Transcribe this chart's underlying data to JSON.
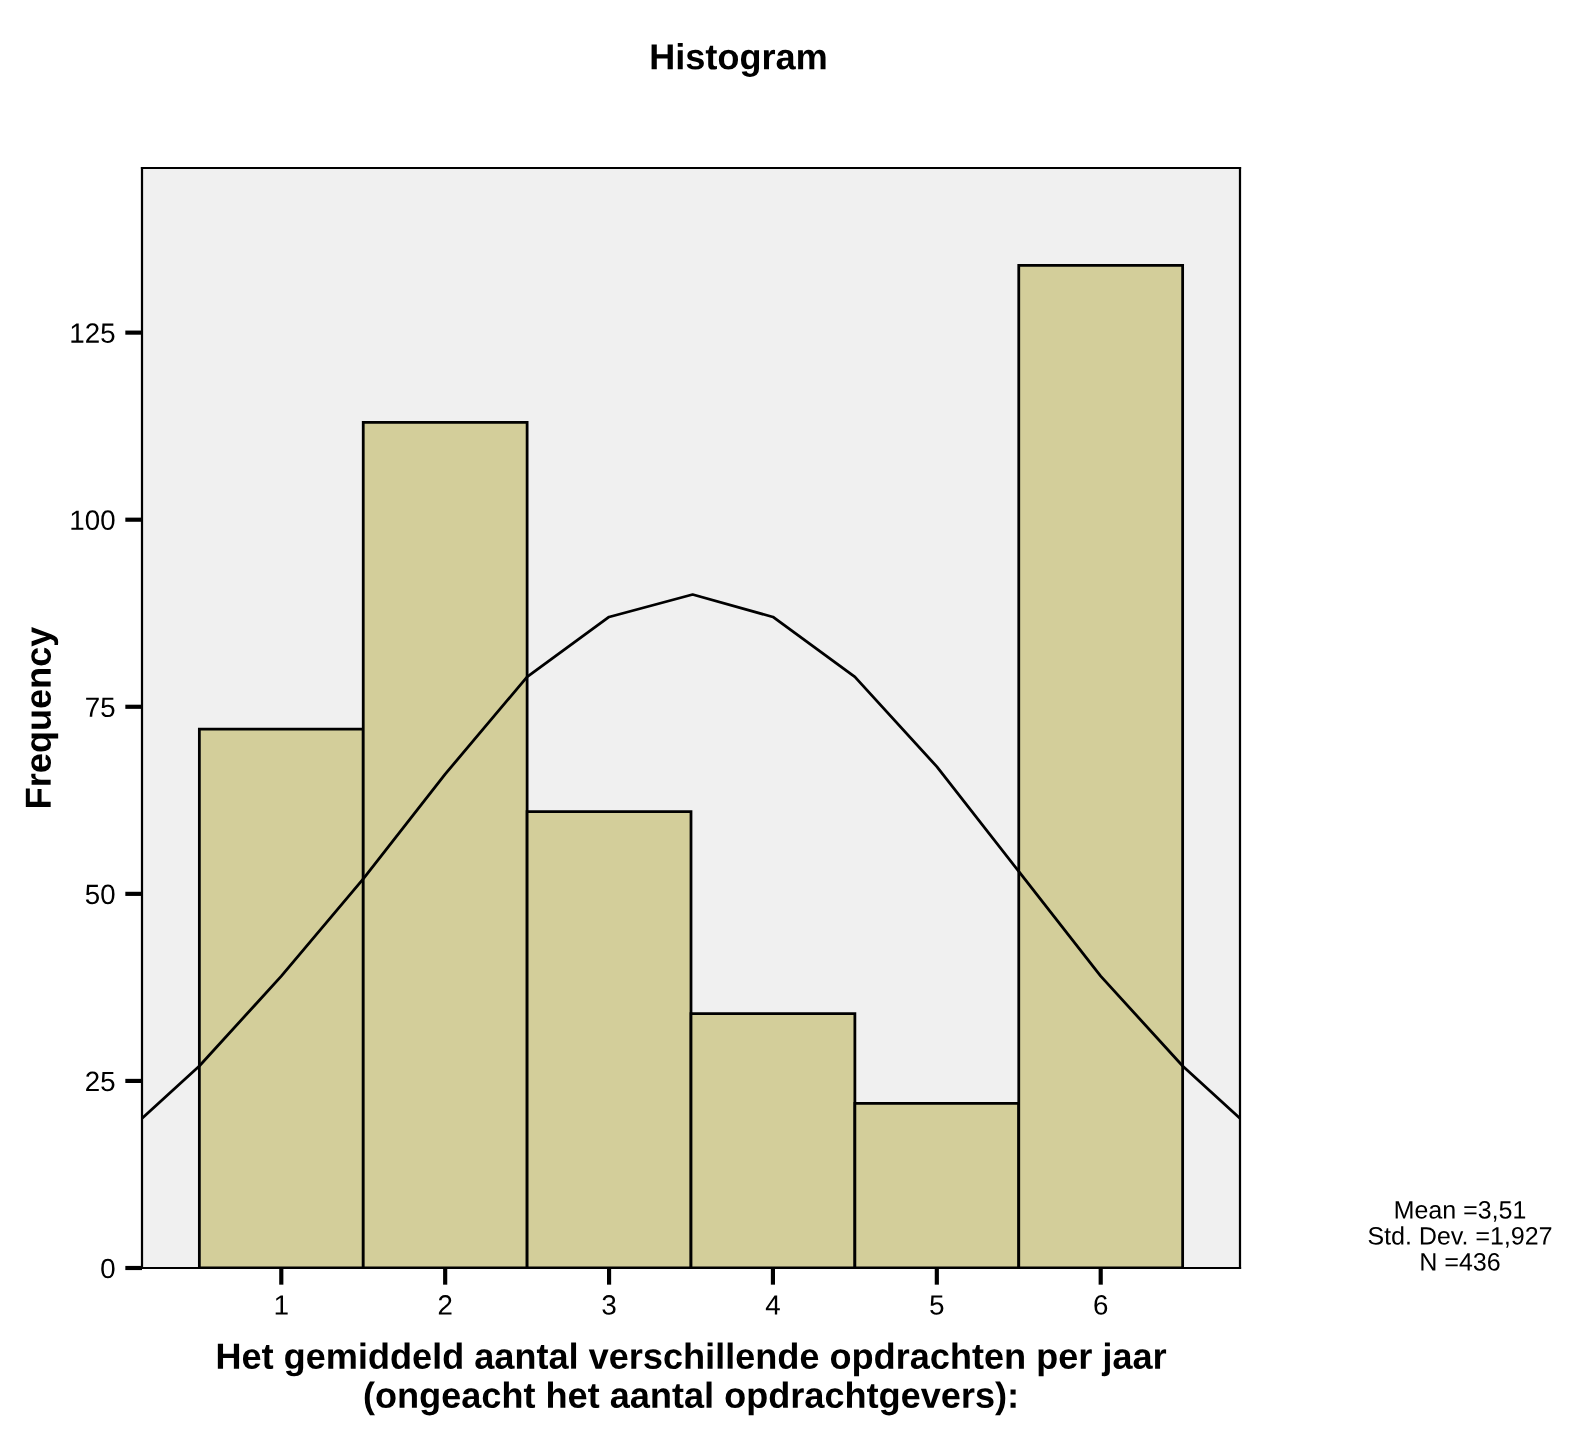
{
  "chart_data": {
    "type": "histogram",
    "title": "Histogram",
    "xlabel": "Het gemiddeld aantal verschillende opdrachten per jaar\n(ongeacht het aantal opdrachtgevers):",
    "ylabel": "Frequency",
    "bins": [
      0.5,
      1.5,
      2.5,
      3.5,
      4.5,
      5.5,
      6.5
    ],
    "values": [
      72,
      113,
      61,
      34,
      22,
      134
    ],
    "color": "#d3ce9a",
    "series": [
      {
        "type": "line",
        "color": "#000000",
        "x": [
          0.15,
          0.5,
          1,
          1.5,
          2,
          2.5,
          3,
          3.51,
          4,
          4.5,
          5,
          5.5,
          6,
          6.5,
          6.85
        ],
        "values": [
          20,
          27,
          39,
          52,
          66,
          79,
          87,
          90,
          87,
          79,
          67,
          53,
          39,
          27,
          20
        ]
      }
    ],
    "xlim": [
      0.15,
      6.85
    ],
    "xticks": [
      1,
      2,
      3,
      4,
      5,
      6
    ],
    "ylim": [
      0,
      147
    ],
    "yticks": [
      0,
      25,
      50,
      75,
      100,
      125
    ],
    "grid": false,
    "legend": false,
    "annotations": [
      "Mean =3,51",
      "Std. Dev. =1,927",
      "N =436"
    ]
  }
}
